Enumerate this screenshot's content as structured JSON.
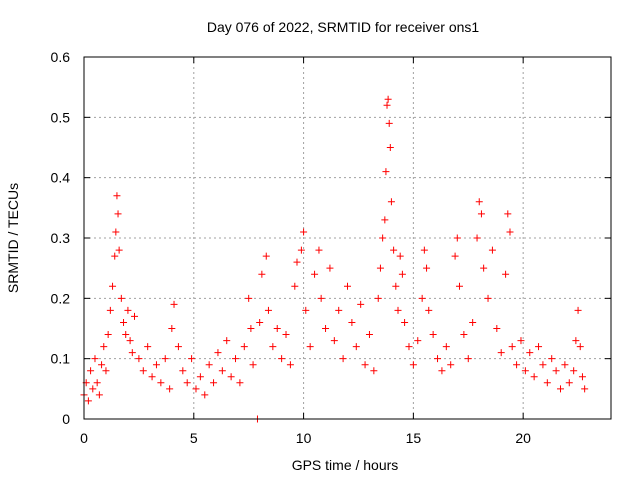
{
  "chart_data": {
    "type": "scatter",
    "title": "Day 076 of 2022, SRMTID for receiver ons1",
    "xlabel": "GPS time / hours",
    "ylabel": "SRMTID / TECUs",
    "xlim": [
      0,
      24
    ],
    "ylim": [
      0,
      0.6
    ],
    "x_ticks": [
      0,
      5,
      10,
      15,
      20
    ],
    "x_tick_labels": [
      "0",
      "5",
      "10",
      "15",
      "20"
    ],
    "y_ticks": [
      0,
      0.1,
      0.2,
      0.3,
      0.4,
      0.5,
      0.6
    ],
    "y_tick_labels": [
      "0",
      "0.1",
      "0.2",
      "0.3",
      "0.4",
      "0.5",
      "0.6"
    ],
    "grid": true,
    "marker": "+",
    "series": [
      {
        "name": "SRMTID",
        "color": "#ff0000",
        "points": [
          [
            0.0,
            0.04
          ],
          [
            0.1,
            0.06
          ],
          [
            0.2,
            0.03
          ],
          [
            0.3,
            0.08
          ],
          [
            0.4,
            0.05
          ],
          [
            0.5,
            0.1
          ],
          [
            0.6,
            0.06
          ],
          [
            0.7,
            0.04
          ],
          [
            0.8,
            0.09
          ],
          [
            0.9,
            0.12
          ],
          [
            1.0,
            0.08
          ],
          [
            1.1,
            0.14
          ],
          [
            1.2,
            0.18
          ],
          [
            1.3,
            0.22
          ],
          [
            1.4,
            0.27
          ],
          [
            1.45,
            0.31
          ],
          [
            1.5,
            0.37
          ],
          [
            1.55,
            0.34
          ],
          [
            1.6,
            0.28
          ],
          [
            1.7,
            0.2
          ],
          [
            1.8,
            0.16
          ],
          [
            1.9,
            0.14
          ],
          [
            2.0,
            0.18
          ],
          [
            2.1,
            0.13
          ],
          [
            2.2,
            0.11
          ],
          [
            2.3,
            0.17
          ],
          [
            2.5,
            0.1
          ],
          [
            2.7,
            0.08
          ],
          [
            2.9,
            0.12
          ],
          [
            3.1,
            0.07
          ],
          [
            3.3,
            0.09
          ],
          [
            3.5,
            0.06
          ],
          [
            3.7,
            0.1
          ],
          [
            3.9,
            0.05
          ],
          [
            4.0,
            0.15
          ],
          [
            4.1,
            0.19
          ],
          [
            4.3,
            0.12
          ],
          [
            4.5,
            0.08
          ],
          [
            4.7,
            0.06
          ],
          [
            4.9,
            0.1
          ],
          [
            5.1,
            0.05
          ],
          [
            5.3,
            0.07
          ],
          [
            5.5,
            0.04
          ],
          [
            5.7,
            0.09
          ],
          [
            5.9,
            0.06
          ],
          [
            6.1,
            0.11
          ],
          [
            6.3,
            0.08
          ],
          [
            6.5,
            0.13
          ],
          [
            6.7,
            0.07
          ],
          [
            6.9,
            0.1
          ],
          [
            7.1,
            0.06
          ],
          [
            7.3,
            0.12
          ],
          [
            7.5,
            0.2
          ],
          [
            7.6,
            0.15
          ],
          [
            7.7,
            0.09
          ],
          [
            7.9,
            0.0
          ],
          [
            8.0,
            0.16
          ],
          [
            8.1,
            0.24
          ],
          [
            8.3,
            0.27
          ],
          [
            8.4,
            0.18
          ],
          [
            8.6,
            0.12
          ],
          [
            8.8,
            0.15
          ],
          [
            9.0,
            0.1
          ],
          [
            9.2,
            0.14
          ],
          [
            9.4,
            0.09
          ],
          [
            9.6,
            0.22
          ],
          [
            9.7,
            0.26
          ],
          [
            9.9,
            0.28
          ],
          [
            10.0,
            0.31
          ],
          [
            10.1,
            0.18
          ],
          [
            10.3,
            0.12
          ],
          [
            10.5,
            0.24
          ],
          [
            10.7,
            0.28
          ],
          [
            10.8,
            0.2
          ],
          [
            11.0,
            0.15
          ],
          [
            11.2,
            0.25
          ],
          [
            11.4,
            0.13
          ],
          [
            11.6,
            0.18
          ],
          [
            11.8,
            0.1
          ],
          [
            12.0,
            0.22
          ],
          [
            12.2,
            0.16
          ],
          [
            12.4,
            0.12
          ],
          [
            12.6,
            0.19
          ],
          [
            12.8,
            0.09
          ],
          [
            13.0,
            0.14
          ],
          [
            13.2,
            0.08
          ],
          [
            13.4,
            0.2
          ],
          [
            13.5,
            0.25
          ],
          [
            13.6,
            0.3
          ],
          [
            13.7,
            0.33
          ],
          [
            13.75,
            0.41
          ],
          [
            13.8,
            0.52
          ],
          [
            13.85,
            0.53
          ],
          [
            13.9,
            0.49
          ],
          [
            13.95,
            0.45
          ],
          [
            14.0,
            0.36
          ],
          [
            14.1,
            0.28
          ],
          [
            14.2,
            0.22
          ],
          [
            14.3,
            0.18
          ],
          [
            14.4,
            0.27
          ],
          [
            14.5,
            0.24
          ],
          [
            14.6,
            0.16
          ],
          [
            14.8,
            0.12
          ],
          [
            15.0,
            0.09
          ],
          [
            15.2,
            0.13
          ],
          [
            15.4,
            0.2
          ],
          [
            15.5,
            0.28
          ],
          [
            15.6,
            0.25
          ],
          [
            15.7,
            0.18
          ],
          [
            15.9,
            0.14
          ],
          [
            16.1,
            0.1
          ],
          [
            16.3,
            0.08
          ],
          [
            16.5,
            0.12
          ],
          [
            16.7,
            0.09
          ],
          [
            16.9,
            0.27
          ],
          [
            17.0,
            0.3
          ],
          [
            17.1,
            0.22
          ],
          [
            17.3,
            0.14
          ],
          [
            17.5,
            0.1
          ],
          [
            17.7,
            0.16
          ],
          [
            17.9,
            0.3
          ],
          [
            18.0,
            0.36
          ],
          [
            18.1,
            0.34
          ],
          [
            18.2,
            0.25
          ],
          [
            18.4,
            0.2
          ],
          [
            18.6,
            0.28
          ],
          [
            18.8,
            0.15
          ],
          [
            19.0,
            0.11
          ],
          [
            19.2,
            0.24
          ],
          [
            19.3,
            0.34
          ],
          [
            19.4,
            0.31
          ],
          [
            19.5,
            0.12
          ],
          [
            19.7,
            0.09
          ],
          [
            19.9,
            0.13
          ],
          [
            20.1,
            0.08
          ],
          [
            20.3,
            0.11
          ],
          [
            20.5,
            0.07
          ],
          [
            20.7,
            0.12
          ],
          [
            20.9,
            0.09
          ],
          [
            21.1,
            0.06
          ],
          [
            21.3,
            0.1
          ],
          [
            21.5,
            0.08
          ],
          [
            21.7,
            0.05
          ],
          [
            21.9,
            0.09
          ],
          [
            22.1,
            0.06
          ],
          [
            22.3,
            0.08
          ],
          [
            22.4,
            0.13
          ],
          [
            22.5,
            0.18
          ],
          [
            22.6,
            0.12
          ],
          [
            22.7,
            0.07
          ],
          [
            22.8,
            0.05
          ]
        ]
      }
    ]
  }
}
